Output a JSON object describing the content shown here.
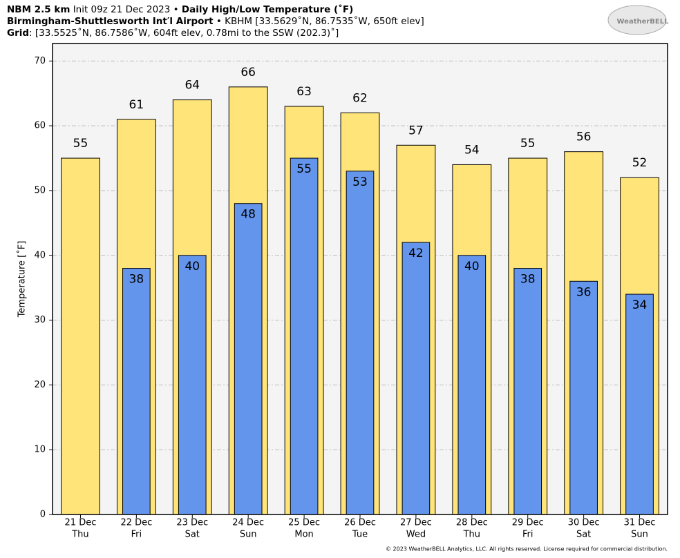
{
  "chart_data": {
    "type": "bar",
    "model": "NBM 2.5 km",
    "init": "Init 09z 21 Dec 2023",
    "separator": "•",
    "title": "Daily High/Low Temperature (˚F)",
    "station": "Birmingham-Shuttlesworth Int′l Airport",
    "station_info": "KBHM [33.5629˚N, 86.7535˚W, 650ft elev]",
    "grid_label": "Grid",
    "grid_info": ": [33.5525˚N, 86.7586˚W, 604ft elev, 0.78mi to the SSW (202.3)˚]",
    "logo": "WeatherBELL",
    "copyright": "© 2023 WeatherBELL Analytics, LLC. All rights reserved. License required for commercial distribution.",
    "y_label": "Temperature [˚F]",
    "categories": [
      "21 Dec",
      "22 Dec",
      "23 Dec",
      "24 Dec",
      "25 Dec",
      "26 Dec",
      "27 Dec",
      "28 Dec",
      "29 Dec",
      "30 Dec",
      "31 Dec"
    ],
    "weekdays": [
      "Thu",
      "Fri",
      "Sat",
      "Sun",
      "Mon",
      "Tue",
      "Wed",
      "Thu",
      "Fri",
      "Sat",
      "Sun"
    ],
    "series": [
      {
        "color": "#ffe47a",
        "values": [
          55,
          61,
          64,
          66,
          63,
          62,
          57,
          54,
          55,
          56,
          52
        ]
      },
      {
        "color": "#6495ed",
        "values": [
          null,
          38,
          40,
          48,
          55,
          53,
          42,
          40,
          38,
          36,
          34
        ]
      }
    ],
    "ylim": [
      0,
      72.7
    ],
    "yticks": [
      0,
      10,
      20,
      30,
      40,
      50,
      60,
      70
    ],
    "grid": true
  }
}
